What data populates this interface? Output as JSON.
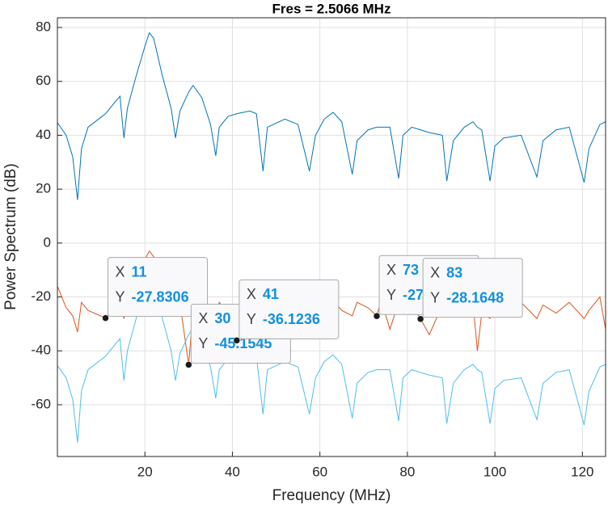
{
  "chart_data": {
    "type": "line",
    "title": "Fres = 2.5066 MHz",
    "x_label": "Frequency (MHz)",
    "y_label": "Power Spectrum (dB)",
    "x": [
      0,
      2,
      3.5,
      4.6,
      5.5,
      7,
      11,
      13,
      14.3,
      15.2,
      16,
      18,
      20,
      21,
      22,
      24,
      26,
      27,
      28,
      30,
      31,
      33,
      35,
      36.2,
      37,
      39,
      41,
      44,
      45.5,
      47,
      48,
      52,
      55,
      57.6,
      59,
      61,
      63,
      65,
      67.4,
      68.5,
      71,
      73,
      74,
      76,
      78,
      79,
      81,
      83,
      85,
      88,
      89,
      90.5,
      93,
      95,
      96,
      97,
      98.9,
      100,
      102,
      106,
      109.6,
      111,
      114,
      117,
      120.4,
      121.5,
      124,
      125.3
    ],
    "series": [
      {
        "color": "#0072bd",
        "values": [
          44.7,
          40,
          32,
          16,
          35,
          43,
          48,
          52,
          54.5,
          39,
          50,
          62,
          73,
          78,
          76,
          62,
          50,
          39,
          49,
          56,
          58.5,
          54,
          44,
          32.4,
          43,
          47,
          48,
          49,
          48,
          26.7,
          43,
          46,
          44,
          26.7,
          40,
          46,
          48.5,
          45,
          25.5,
          38,
          42,
          43,
          43,
          43,
          24,
          40,
          43,
          42,
          41,
          40,
          23,
          38,
          43,
          45,
          43,
          42,
          23,
          36,
          39,
          40,
          24.5,
          38,
          42,
          43,
          22.5,
          35,
          44,
          45
        ]
      },
      {
        "color": "#d95319",
        "values": [
          -16,
          -24,
          -27,
          -33,
          -22,
          -25,
          -27.8306,
          -24,
          -22,
          -28,
          -21,
          -13,
          -6,
          -3,
          -5,
          -14,
          -19,
          -27,
          -22,
          -45.1545,
          -25,
          -22,
          -24,
          -28,
          -22,
          -26,
          -36.1236,
          -23,
          -21,
          -27,
          -22,
          -24,
          -21,
          -26,
          -22,
          -24,
          -21,
          -25,
          -27,
          -22,
          -24,
          -27.1,
          -21,
          -32,
          -22,
          -26,
          -23,
          -28.1648,
          -34,
          -23,
          -27,
          -22,
          -25,
          -22,
          -40,
          -26,
          -28,
          -23,
          -25,
          -22,
          -28,
          -23,
          -26,
          -22,
          -28,
          -25,
          -20,
          -32
        ]
      },
      {
        "color": "#4dbeee",
        "values": [
          -45.5,
          -50,
          -58,
          -74,
          -55,
          -47,
          -42,
          -38,
          -35.5,
          -51,
          -40,
          -28,
          -17,
          -12,
          -14,
          -28,
          -40,
          -51,
          -41,
          -34,
          -31.5,
          -36,
          -46,
          -57.6,
          -47,
          -43,
          -42,
          -41,
          -42,
          -63.5,
          -47,
          -44,
          -46,
          -63.5,
          -50,
          -44,
          -41.5,
          -45,
          -65,
          -52,
          -48,
          -47,
          -47,
          -47,
          -66,
          -50,
          -47,
          -48,
          -49,
          -50,
          -67,
          -52,
          -47,
          -45,
          -47,
          -48,
          -67,
          -54,
          -51,
          -50,
          -65.5,
          -52,
          -48,
          -47,
          -67.5,
          -55,
          -46,
          -45
        ]
      }
    ],
    "xlim": [
      0,
      125.3
    ],
    "ylim": [
      -79.2,
      83.6
    ],
    "xticks": [
      20,
      40,
      60,
      80,
      100,
      120
    ],
    "yticks": [
      -60,
      -40,
      -20,
      0,
      20,
      40,
      60,
      80
    ],
    "grid": true,
    "datatip_x_label": "X",
    "datatip_y_label": "Y",
    "datatips": [
      {
        "x": 11,
        "y": -27.8306
      },
      {
        "x": 30,
        "y": -45.1545
      },
      {
        "x": 41,
        "y": -36.1236
      },
      {
        "x": 73,
        "y": -27.1
      },
      {
        "x": 83,
        "y": -28.1648
      }
    ]
  }
}
